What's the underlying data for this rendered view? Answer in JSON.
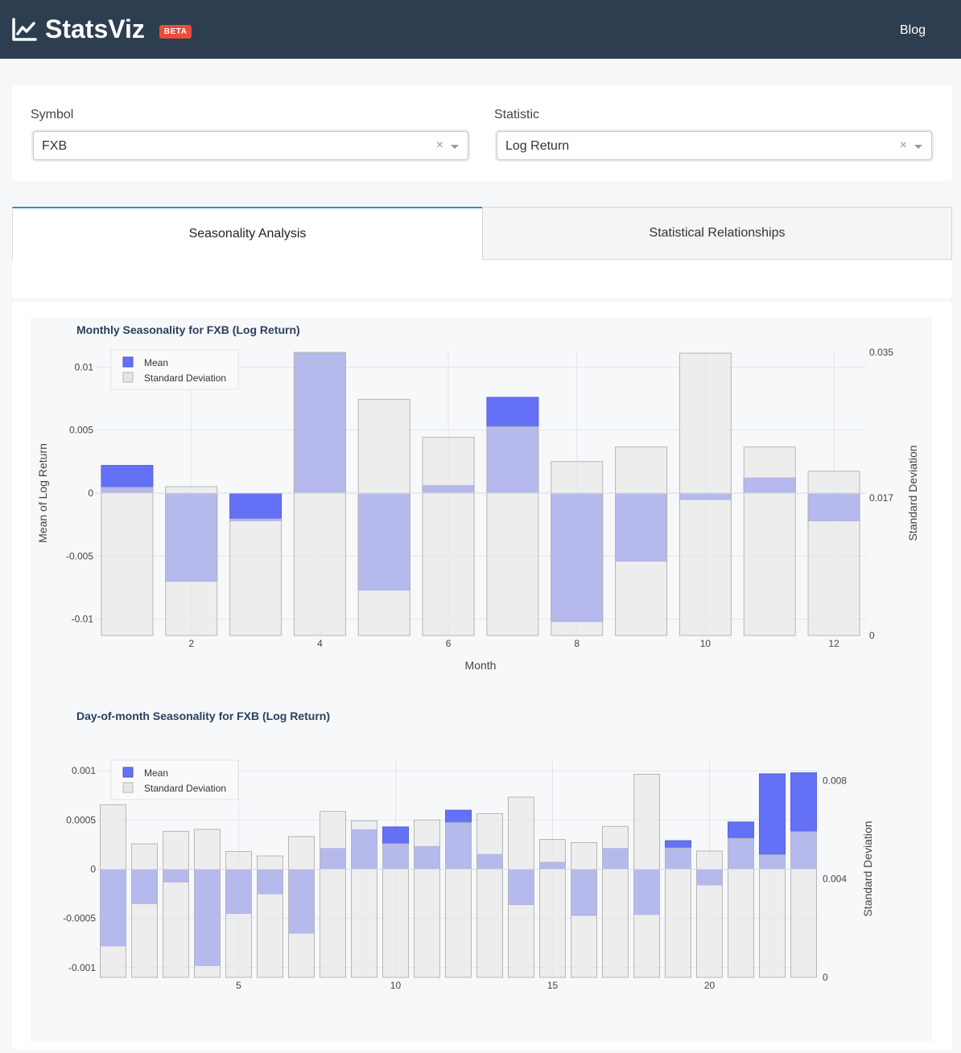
{
  "header": {
    "brand": "StatsViz",
    "beta_badge": "BETA",
    "nav_blog": "Blog",
    "icon": "line-chart-icon"
  },
  "filters": {
    "symbol_label": "Symbol",
    "symbol_value": "FXB",
    "statistic_label": "Statistic",
    "statistic_value": "Log Return",
    "clear_glyph": "×"
  },
  "tabs": [
    {
      "label": "Seasonality Analysis",
      "active": true
    },
    {
      "label": "Statistical Relationships",
      "active": false
    }
  ],
  "colors": {
    "mean": "#6470f5",
    "mean_overlay": "#979ce9",
    "std": "#e6e6e6",
    "std_stroke": "#b7b7b7"
  },
  "chart_data": [
    {
      "type": "bar",
      "title": "Monthly Seasonality for FXB (Log Return)",
      "xlabel": "Month",
      "ylabel": "Mean of Log Return",
      "y2label": "Standard Deviation",
      "legend": [
        "Mean",
        "Standard Deviation"
      ],
      "legend_position": "top-left",
      "x": [
        1,
        2,
        3,
        4,
        5,
        6,
        7,
        8,
        9,
        10,
        11,
        12
      ],
      "x_ticks": [
        2,
        4,
        6,
        8,
        10,
        12
      ],
      "x_tick_labels": [
        "2",
        "4",
        "6",
        "8",
        "10",
        "12"
      ],
      "y_ticks": [
        0.01,
        0.005,
        0,
        -0.005,
        -0.01
      ],
      "y_tick_labels": [
        "0.01",
        "0.005",
        "0",
        "-0.005",
        "-0.01"
      ],
      "y2_ticks": [
        0.035,
        0.017,
        0
      ],
      "y2_tick_labels": [
        "0.035",
        "0.017",
        "0"
      ],
      "ylim": [
        -0.0113,
        0.0113
      ],
      "y2lim": [
        0,
        0.0352
      ],
      "series": [
        {
          "name": "Mean",
          "axis": "y",
          "values": [
            0.0022,
            -0.007,
            -0.0022,
            0.0111,
            -0.0077,
            0.0006,
            0.0076,
            -0.0102,
            -0.0054,
            -0.0005,
            0.0012,
            -0.0022
          ]
        },
        {
          "name": "Standard Deviation",
          "axis": "y2",
          "values": [
            0.0183,
            0.0184,
            0.0144,
            0.035,
            0.0292,
            0.0245,
            0.0258,
            0.0215,
            0.0233,
            0.0349,
            0.0233,
            0.0203
          ]
        }
      ]
    },
    {
      "type": "bar",
      "title": "Day-of-month Seasonality for FXB (Log Return)",
      "ylabel": "",
      "y2label": "Standard Deviation",
      "legend": [
        "Mean",
        "Standard Deviation"
      ],
      "legend_position": "top-left",
      "x": [
        1,
        2,
        3,
        4,
        5,
        6,
        7,
        8,
        9,
        10,
        11,
        12,
        13,
        14,
        15,
        16,
        17,
        18,
        19,
        20,
        21,
        22,
        23
      ],
      "x_ticks": [
        5,
        10,
        15,
        20
      ],
      "x_tick_labels": [
        "5",
        "10",
        "15",
        "20"
      ],
      "y_ticks": [
        0.001,
        0.0005,
        0,
        -0.0005,
        -0.001
      ],
      "y_tick_labels": [
        "0.001",
        "0.0005",
        "0",
        "-0.0005",
        "-0.001"
      ],
      "y2_ticks": [
        0.008,
        0.004,
        0
      ],
      "y2_tick_labels": [
        "0.008",
        "0.004",
        "0"
      ],
      "ylim": [
        -0.0011,
        0.0011
      ],
      "y2lim": [
        0,
        0.0088
      ],
      "series": [
        {
          "name": "Mean",
          "axis": "y",
          "values": [
            -0.00078,
            -0.00035,
            -0.00013,
            -0.00098,
            -0.00045,
            -0.00025,
            -0.00065,
            0.00021,
            0.0004,
            0.00043,
            0.00023,
            0.0006,
            0.00015,
            -0.00036,
            7e-05,
            -0.00047,
            0.00021,
            -0.00046,
            0.00029,
            -0.00016,
            0.00048,
            0.00097,
            0.00098
          ]
        },
        {
          "name": "Standard Deviation",
          "axis": "y2",
          "values": [
            0.00702,
            0.00543,
            0.00594,
            0.00602,
            0.00512,
            0.00494,
            0.00573,
            0.00675,
            0.00637,
            0.00543,
            0.0064,
            0.00629,
            0.00666,
            0.00733,
            0.00561,
            0.00548,
            0.00614,
            0.00826,
            0.00526,
            0.00514,
            0.00565,
            0.00498,
            0.00592
          ]
        }
      ]
    }
  ]
}
